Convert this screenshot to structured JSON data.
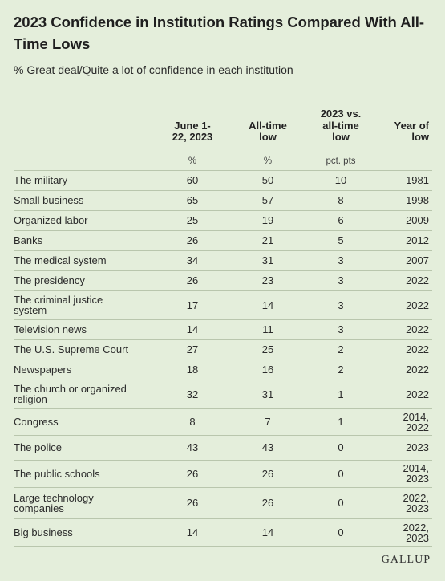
{
  "title": "2023 Confidence in Institution Ratings Compared With All-Time Lows",
  "subtitle": "% Great deal/Quite a lot of confidence in each institution",
  "columns": {
    "june": "June 1-\n22, 2023",
    "low": "All-time\nlow",
    "diff": "2023 vs.\nall-time\nlow",
    "year": "Year of\nlow"
  },
  "units": {
    "june": "%",
    "low": "%",
    "diff": "pct. pts"
  },
  "rows": [
    {
      "name": "The military",
      "june": "60",
      "low": "50",
      "diff": "10",
      "year": "1981"
    },
    {
      "name": "Small business",
      "june": "65",
      "low": "57",
      "diff": "8",
      "year": "1998"
    },
    {
      "name": "Organized labor",
      "june": "25",
      "low": "19",
      "diff": "6",
      "year": "2009"
    },
    {
      "name": "Banks",
      "june": "26",
      "low": "21",
      "diff": "5",
      "year": "2012"
    },
    {
      "name": "The medical system",
      "june": "34",
      "low": "31",
      "diff": "3",
      "year": "2007"
    },
    {
      "name": "The presidency",
      "june": "26",
      "low": "23",
      "diff": "3",
      "year": "2022"
    },
    {
      "name": "The criminal justice\nsystem",
      "june": "17",
      "low": "14",
      "diff": "3",
      "year": "2022"
    },
    {
      "name": "Television news",
      "june": "14",
      "low": "11",
      "diff": "3",
      "year": "2022"
    },
    {
      "name": "The U.S. Supreme Court",
      "june": "27",
      "low": "25",
      "diff": "2",
      "year": "2022"
    },
    {
      "name": "Newspapers",
      "june": "18",
      "low": "16",
      "diff": "2",
      "year": "2022"
    },
    {
      "name": "The church or organized\nreligion",
      "june": "32",
      "low": "31",
      "diff": "1",
      "year": "2022"
    },
    {
      "name": "Congress",
      "june": "8",
      "low": "7",
      "diff": "1",
      "year": "2014,\n2022"
    },
    {
      "name": "The police",
      "june": "43",
      "low": "43",
      "diff": "0",
      "year": "2023"
    },
    {
      "name": "The public schools",
      "june": "26",
      "low": "26",
      "diff": "0",
      "year": "2014,\n2023"
    },
    {
      "name": "Large technology\ncompanies",
      "june": "26",
      "low": "26",
      "diff": "0",
      "year": "2022,\n2023"
    },
    {
      "name": "Big business",
      "june": "14",
      "low": "14",
      "diff": "0",
      "year": "2022,\n2023"
    }
  ],
  "logo": "GALLUP"
}
